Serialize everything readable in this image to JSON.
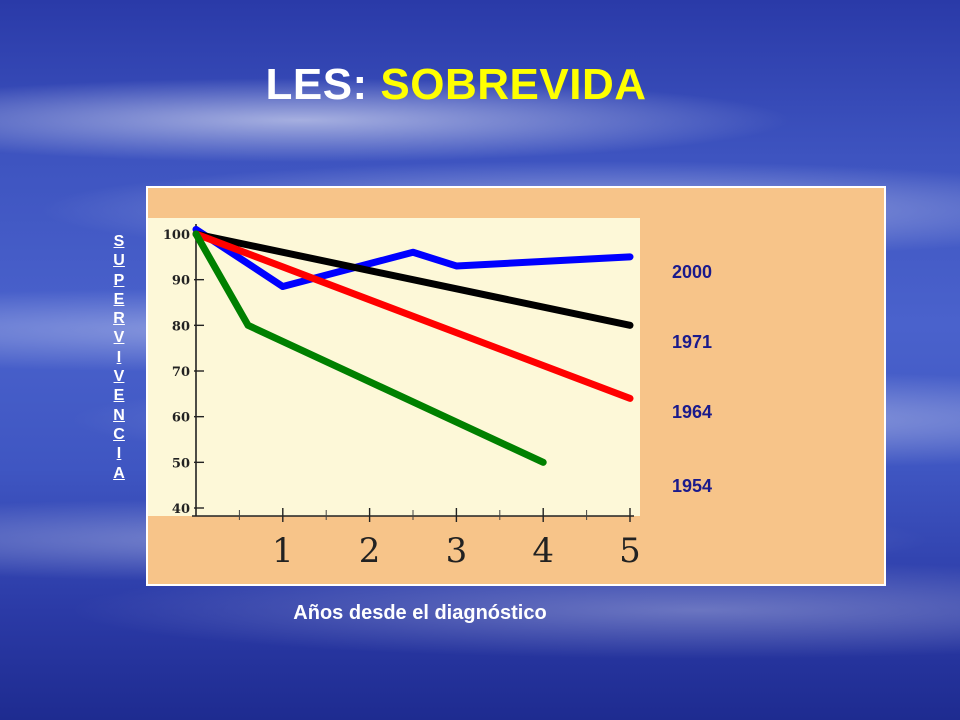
{
  "slide": {
    "title_part1": "LES: ",
    "title_part2": "SOBREVIDA",
    "ylabel_letters": [
      "S",
      "U",
      "P",
      "E",
      "R",
      "V",
      "I",
      "V",
      "E",
      "N",
      "C",
      "I",
      "A"
    ],
    "xlabel": "Años desde el diagnóstico"
  },
  "chart_data": {
    "type": "line",
    "title": "LES: SOBREVIDA",
    "xlabel": "Años desde el diagnóstico",
    "ylabel": "SUPERVIVENCIA",
    "xlim": [
      0,
      5
    ],
    "ylim": [
      40,
      100
    ],
    "x_ticks": [
      1,
      2,
      3,
      4,
      5
    ],
    "y_ticks": [
      40,
      50,
      60,
      70,
      80,
      90,
      100
    ],
    "grid": false,
    "legend_placement": "right",
    "series": [
      {
        "name": "2000",
        "color": "#0000ff",
        "x": [
          0,
          1,
          2.5,
          3,
          5
        ],
        "y": [
          101,
          88.5,
          96,
          93,
          95
        ]
      },
      {
        "name": "1971",
        "color": "#000000",
        "x": [
          0,
          5
        ],
        "y": [
          100,
          80
        ]
      },
      {
        "name": "1964",
        "color": "#ff0000",
        "x": [
          0,
          5
        ],
        "y": [
          100,
          64
        ]
      },
      {
        "name": "1954",
        "color": "#008000",
        "x": [
          0,
          0.6,
          4
        ],
        "y": [
          100,
          80,
          50
        ]
      }
    ]
  }
}
